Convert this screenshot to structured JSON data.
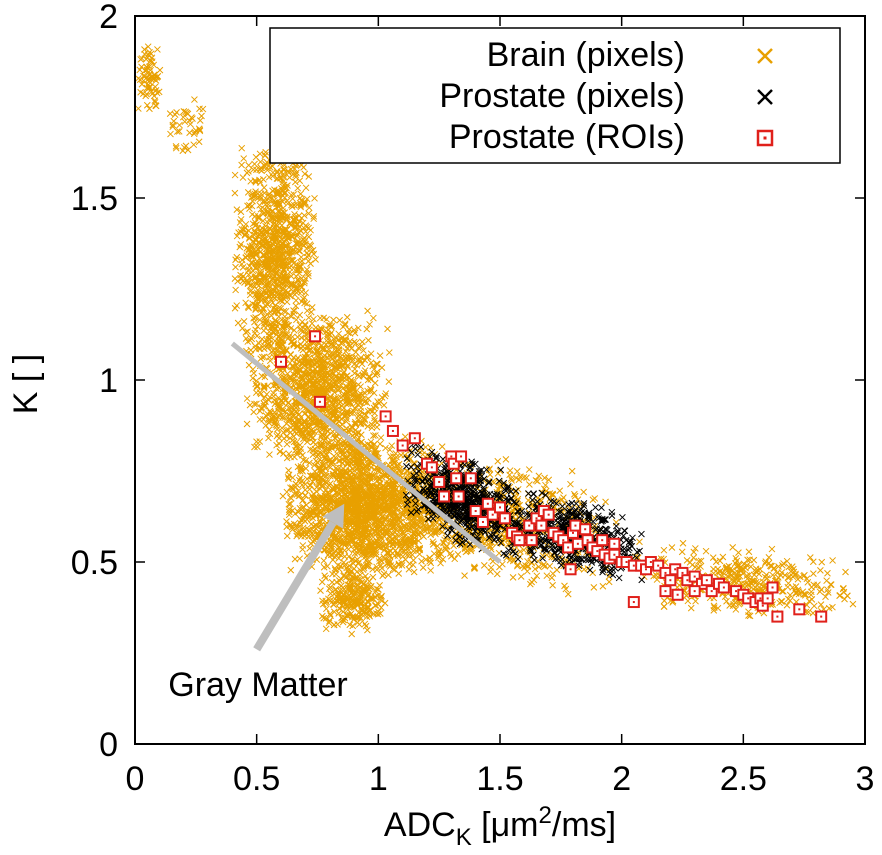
{
  "chart_data": {
    "type": "scatter",
    "title": "",
    "xlabel": {
      "main": "ADC",
      "sub": "K",
      "unit_pre": " [μm",
      "sup": "2",
      "unit_post": "/ms]"
    },
    "ylabel": "K [ ]",
    "xlim": [
      0,
      3
    ],
    "ylim": [
      0,
      2
    ],
    "xticks": [
      0,
      0.5,
      1,
      1.5,
      2,
      2.5,
      3
    ],
    "xtick_labels": [
      "0",
      "0.5",
      "1",
      "1.5",
      "2",
      "2.5",
      "3"
    ],
    "yticks": [
      0,
      0.5,
      1,
      1.5,
      2
    ],
    "ytick_labels": [
      "0",
      "0.5",
      "1",
      "1.5",
      "2"
    ],
    "grid": false,
    "legend_position": "top-right",
    "colors": {
      "brain": "#E8A000",
      "prostate_pixels": "#000000",
      "prostate_rois": "#E0201B",
      "annotation_line": "#BEBEBE"
    },
    "series": [
      {
        "name": "Brain (pixels)",
        "marker": "x",
        "color": "#E8A000",
        "description": "dense cloud of pixel values; ~several thousand points",
        "values_generated_from_density": true,
        "density_regions": [
          {
            "x": [
              0.0,
              0.12
            ],
            "y": [
              1.72,
              1.93
            ],
            "count": 70
          },
          {
            "x": [
              0.12,
              0.3
            ],
            "y": [
              1.62,
              1.78
            ],
            "count": 40
          },
          {
            "x": [
              0.4,
              0.75
            ],
            "y": [
              1.05,
              1.65
            ],
            "count": 900
          },
          {
            "x": [
              0.45,
              1.05
            ],
            "y": [
              0.75,
              1.2
            ],
            "count": 1200
          },
          {
            "x": [
              0.6,
              1.3
            ],
            "y": [
              0.45,
              0.85
            ],
            "count": 1800
          },
          {
            "x": [
              0.75,
              1.05
            ],
            "y": [
              0.3,
              0.5
            ],
            "count": 250
          },
          {
            "x": [
              1.0,
              2.0
            ],
            "y": [
              0.5,
              0.85
            ],
            "count": 700
          },
          {
            "x": [
              2.0,
              3.0
            ],
            "y": [
              0.38,
              0.58
            ],
            "count": 400
          }
        ]
      },
      {
        "name": "Prostate (pixels)",
        "marker": "x",
        "color": "#000000",
        "values_generated_from_density": true,
        "density_regions": [
          {
            "x": [
              1.1,
              1.6
            ],
            "y": [
              0.6,
              0.85
            ],
            "count": 600
          },
          {
            "x": [
              1.5,
              2.1
            ],
            "y": [
              0.52,
              0.72
            ],
            "count": 500
          }
        ]
      },
      {
        "name": "Prostate (ROIs)",
        "marker": "square-dot",
        "color": "#E0201B",
        "points": [
          [
            0.6,
            1.05
          ],
          [
            0.74,
            1.12
          ],
          [
            0.76,
            0.94
          ],
          [
            1.03,
            0.9
          ],
          [
            1.06,
            0.86
          ],
          [
            1.1,
            0.82
          ],
          [
            1.15,
            0.84
          ],
          [
            1.2,
            0.77
          ],
          [
            1.22,
            0.76
          ],
          [
            1.25,
            0.72
          ],
          [
            1.27,
            0.68
          ],
          [
            1.3,
            0.79
          ],
          [
            1.31,
            0.77
          ],
          [
            1.32,
            0.73
          ],
          [
            1.33,
            0.68
          ],
          [
            1.34,
            0.79
          ],
          [
            1.38,
            0.73
          ],
          [
            1.4,
            0.64
          ],
          [
            1.43,
            0.61
          ],
          [
            1.45,
            0.66
          ],
          [
            1.47,
            0.63
          ],
          [
            1.5,
            0.65
          ],
          [
            1.52,
            0.62
          ],
          [
            1.55,
            0.58
          ],
          [
            1.57,
            0.57
          ],
          [
            1.58,
            0.56
          ],
          [
            1.62,
            0.6
          ],
          [
            1.63,
            0.56
          ],
          [
            1.65,
            0.62
          ],
          [
            1.67,
            0.6
          ],
          [
            1.68,
            0.64
          ],
          [
            1.7,
            0.63
          ],
          [
            1.72,
            0.58
          ],
          [
            1.74,
            0.57
          ],
          [
            1.76,
            0.56
          ],
          [
            1.78,
            0.54
          ],
          [
            1.8,
            0.58
          ],
          [
            1.81,
            0.6
          ],
          [
            1.82,
            0.55
          ],
          [
            1.85,
            0.59
          ],
          [
            1.86,
            0.56
          ],
          [
            1.88,
            0.54
          ],
          [
            1.9,
            0.53
          ],
          [
            1.93,
            0.52
          ],
          [
            1.95,
            0.51
          ],
          [
            1.97,
            0.52
          ],
          [
            2.0,
            0.5
          ],
          [
            2.02,
            0.5
          ],
          [
            2.05,
            0.49
          ],
          [
            2.08,
            0.49
          ],
          [
            2.1,
            0.48
          ],
          [
            2.12,
            0.5
          ],
          [
            2.15,
            0.49
          ],
          [
            2.18,
            0.47
          ],
          [
            2.2,
            0.45
          ],
          [
            2.22,
            0.48
          ],
          [
            2.25,
            0.47
          ],
          [
            2.27,
            0.45
          ],
          [
            2.3,
            0.46
          ],
          [
            2.33,
            0.44
          ],
          [
            2.35,
            0.45
          ],
          [
            2.37,
            0.42
          ],
          [
            2.4,
            0.44
          ],
          [
            2.42,
            0.43
          ],
          [
            2.47,
            0.42
          ],
          [
            2.5,
            0.41
          ],
          [
            2.52,
            0.4
          ],
          [
            2.55,
            0.39
          ],
          [
            2.57,
            0.4
          ],
          [
            2.58,
            0.38
          ],
          [
            2.6,
            0.4
          ],
          [
            2.62,
            0.43
          ],
          [
            2.64,
            0.35
          ],
          [
            2.73,
            0.37
          ],
          [
            2.82,
            0.35
          ],
          [
            1.79,
            0.48
          ],
          [
            2.05,
            0.39
          ],
          [
            1.92,
            0.56
          ],
          [
            1.97,
            0.55
          ],
          [
            2.18,
            0.42
          ],
          [
            2.23,
            0.41
          ],
          [
            2.3,
            0.42
          ]
        ]
      }
    ],
    "annotations": [
      {
        "type": "line",
        "from": [
          0.4,
          1.1
        ],
        "to": [
          1.5,
          0.5
        ],
        "color": "#BEBEBE"
      },
      {
        "type": "arrow",
        "from": [
          0.5,
          0.26
        ],
        "to": [
          0.86,
          0.66
        ],
        "text": "Gray Matter",
        "color": "#BEBEBE"
      }
    ]
  }
}
